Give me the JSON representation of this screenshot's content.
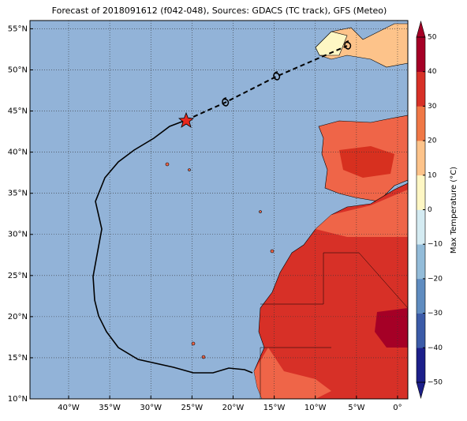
{
  "chart_data": {
    "type": "map",
    "title": "Forecast of 2018091612 (f042-048), Sources: GDACS (TC track), GFS (Meteo)",
    "xlim": [
      -44.7,
      1.25
    ],
    "ylim": [
      10,
      56
    ],
    "xticks": [
      {
        "value": -40,
        "label": "40°W"
      },
      {
        "value": -35,
        "label": "35°W"
      },
      {
        "value": -30,
        "label": "30°W"
      },
      {
        "value": -25,
        "label": "25°W"
      },
      {
        "value": -20,
        "label": "20°W"
      },
      {
        "value": -15,
        "label": "15°W"
      },
      {
        "value": -10,
        "label": "10°W"
      },
      {
        "value": -5,
        "label": "5°W"
      },
      {
        "value": 0,
        "label": "0°"
      }
    ],
    "yticks": [
      {
        "value": 10,
        "label": "10°N"
      },
      {
        "value": 15,
        "label": "15°N"
      },
      {
        "value": 20,
        "label": "20°N"
      },
      {
        "value": 25,
        "label": "25°N"
      },
      {
        "value": 30,
        "label": "30°N"
      },
      {
        "value": 35,
        "label": "35°N"
      },
      {
        "value": 40,
        "label": "40°N"
      },
      {
        "value": 45,
        "label": "45°N"
      },
      {
        "value": 50,
        "label": "50°N"
      },
      {
        "value": 55,
        "label": "55°N"
      }
    ],
    "grid": true,
    "colorbar": {
      "label": "Max Temperature (°C)",
      "lim": [
        -50,
        50
      ],
      "ticks": [
        {
          "value": -50,
          "label": "−50"
        },
        {
          "value": -40,
          "label": "−40"
        },
        {
          "value": -30,
          "label": "−30"
        },
        {
          "value": -20,
          "label": "−20"
        },
        {
          "value": -10,
          "label": "−10"
        },
        0,
        10,
        20,
        30,
        40,
        50
      ],
      "colors": [
        "#1c1f8a",
        "#3b5ba8",
        "#5f8cc0",
        "#93bcd9",
        "#d4ebf2",
        "#fef7c4",
        "#fdc38a",
        "#f07846",
        "#d73027",
        "#a50026"
      ]
    }
  }
}
